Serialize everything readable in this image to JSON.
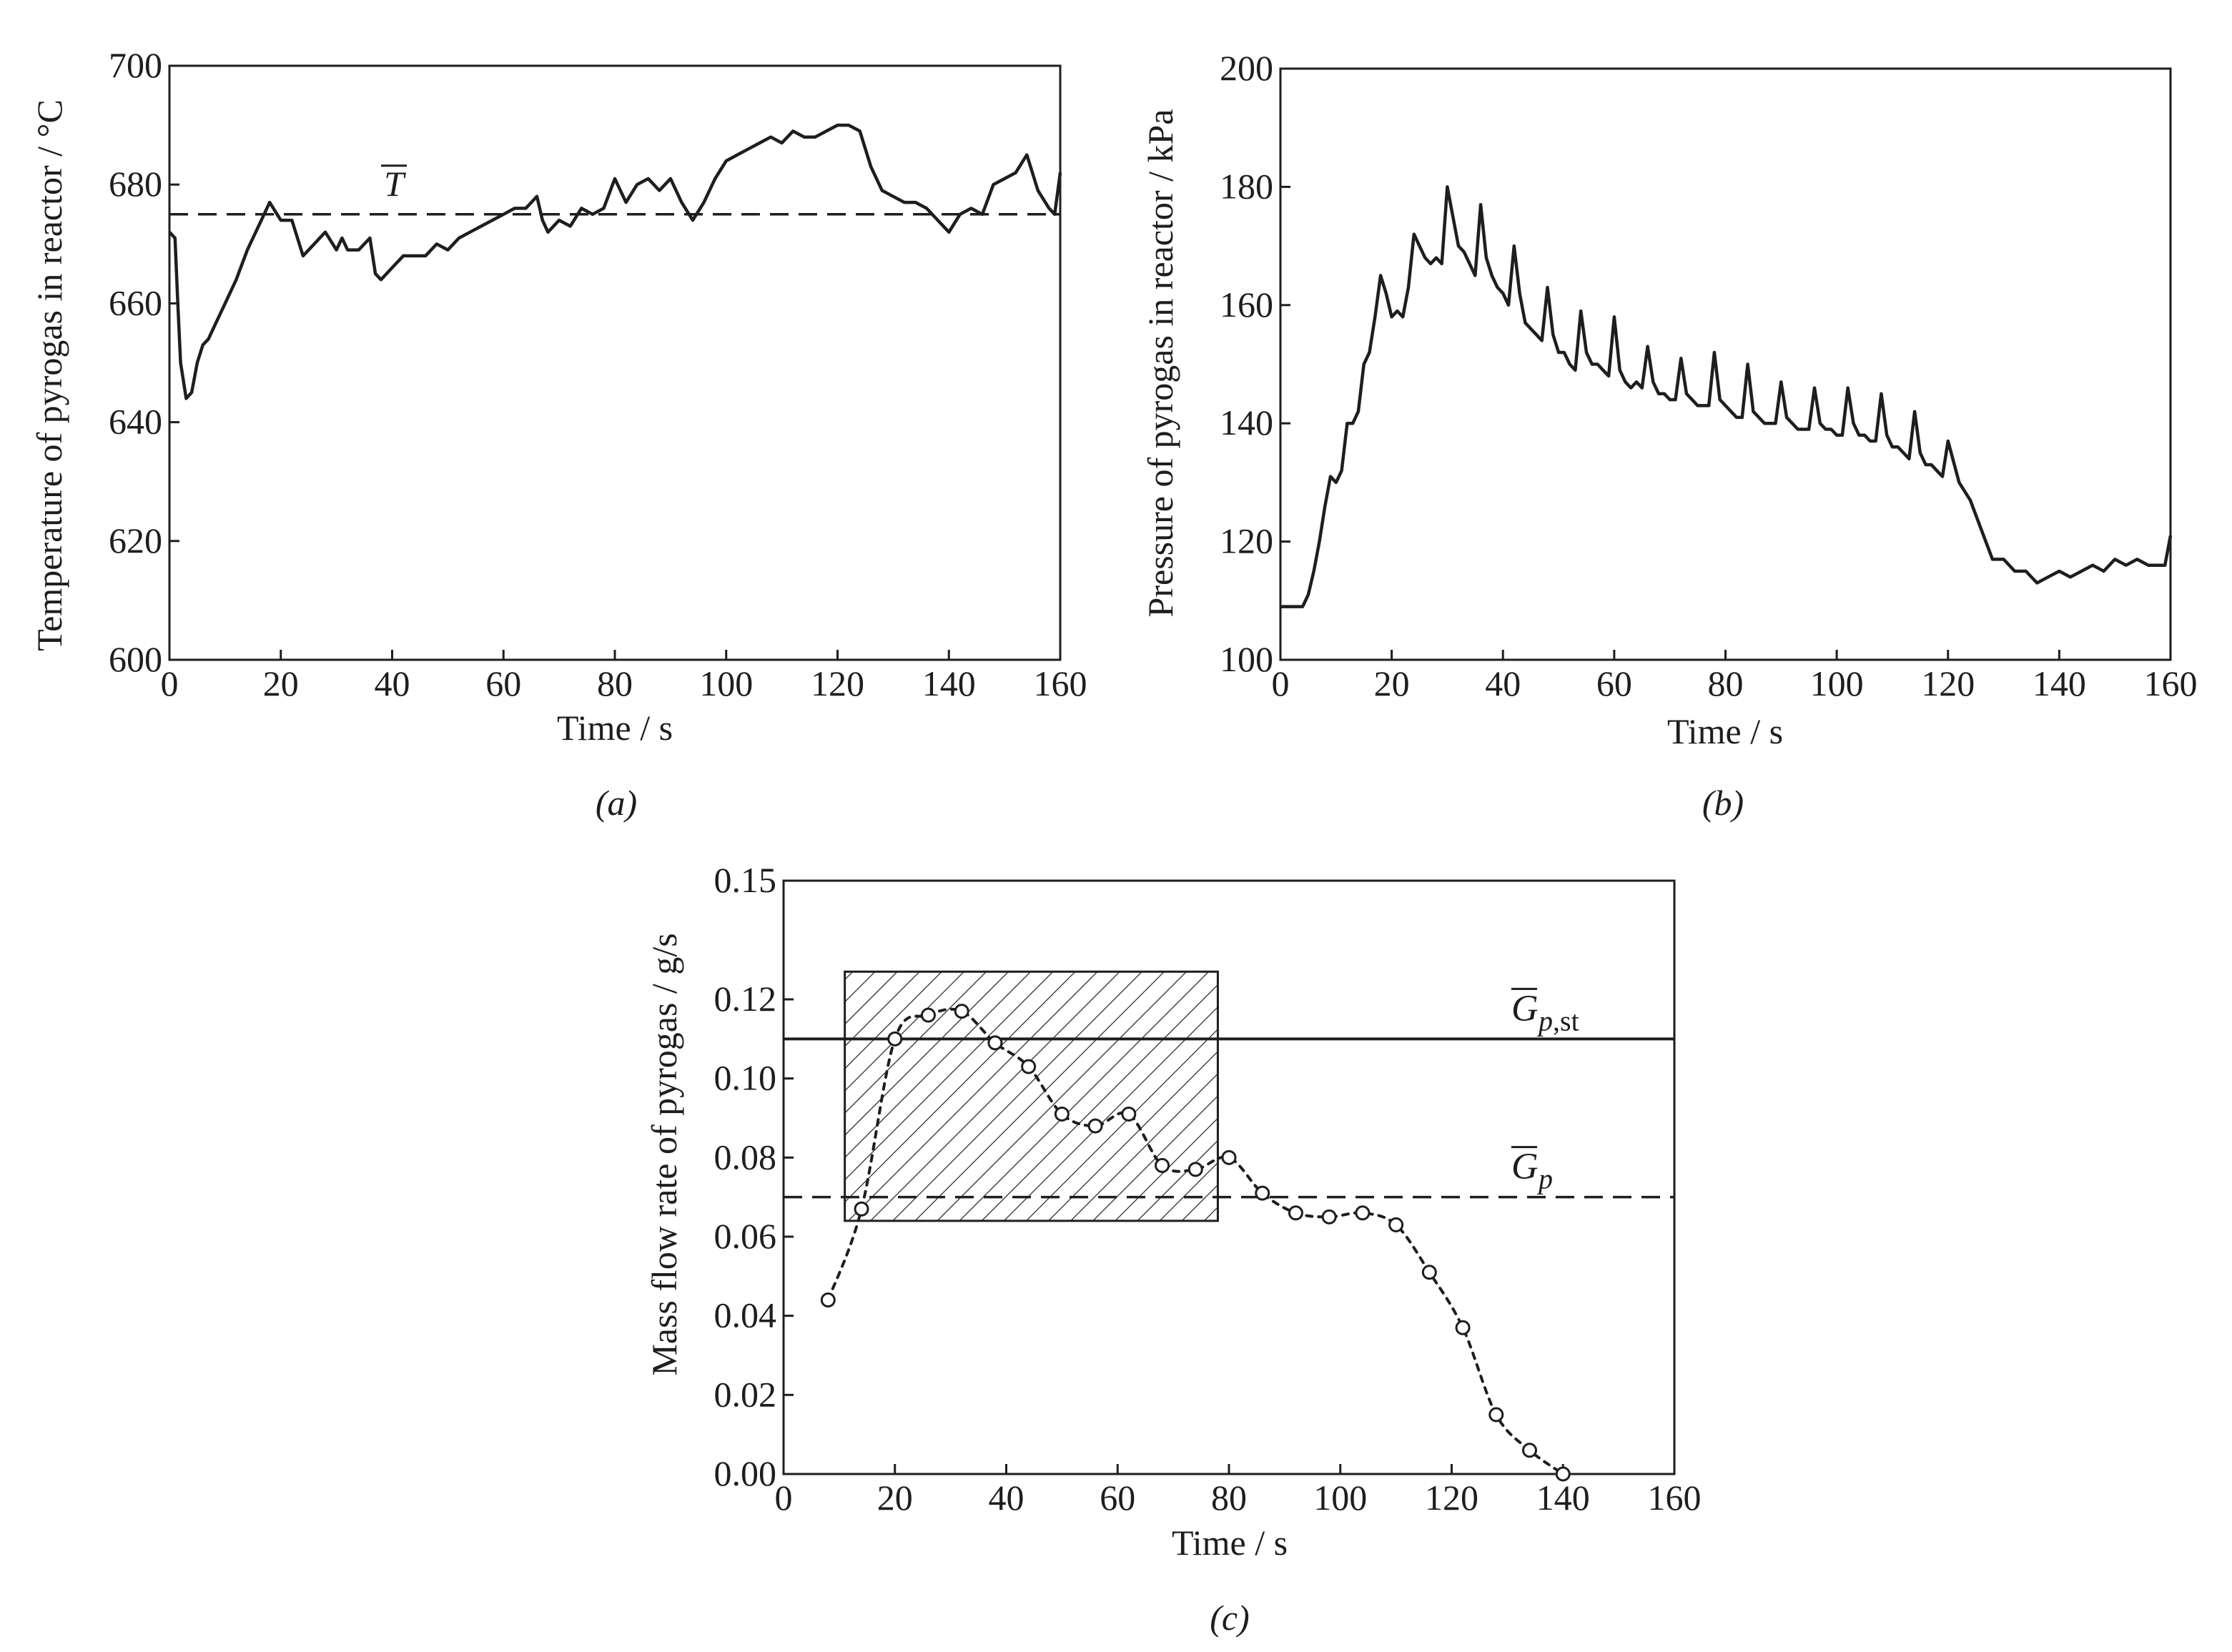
{
  "figure": {
    "panel_labels": [
      "(a)",
      "(b)",
      "(c)"
    ]
  },
  "colors": {
    "ink": "#1e1e1e",
    "background": "#ffffff"
  },
  "chart_data": [
    {
      "id": "a",
      "type": "line",
      "title": "",
      "xlabel": "Time / s",
      "ylabel": "Temperature of pyrogas in reactor / °C",
      "xlim": [
        0,
        160
      ],
      "ylim": [
        600,
        700
      ],
      "xticks": [
        0,
        20,
        40,
        60,
        80,
        100,
        120,
        140,
        160
      ],
      "yticks": [
        600,
        620,
        640,
        660,
        680,
        700
      ],
      "grid": false,
      "series": [
        {
          "style": "solid",
          "x": [
            0,
            1,
            1.5,
            2,
            3,
            4,
            5,
            6,
            7,
            8,
            10,
            12,
            14,
            16,
            17,
            18,
            20,
            22,
            24,
            26,
            28,
            30,
            31,
            32,
            34,
            36,
            37,
            38,
            40,
            42,
            44,
            46,
            48,
            50,
            52,
            54,
            56,
            58,
            60,
            62,
            64,
            66,
            67,
            68,
            70,
            72,
            74,
            76,
            78,
            80,
            82,
            84,
            86,
            88,
            90,
            92,
            94,
            96,
            98,
            100,
            102,
            104,
            106,
            108,
            110,
            112,
            114,
            116,
            118,
            120,
            122,
            124,
            126,
            128,
            130,
            132,
            134,
            136,
            138,
            140,
            142,
            144,
            146,
            148,
            150,
            152,
            154,
            156,
            158,
            159,
            160
          ],
          "y": [
            672,
            671,
            660,
            650,
            644,
            645,
            650,
            653,
            654,
            656,
            660,
            664,
            669,
            673,
            675,
            677,
            674,
            674,
            668,
            670,
            672,
            669,
            671,
            669,
            669,
            671,
            665,
            664,
            666,
            668,
            668,
            668,
            670,
            669,
            671,
            672,
            673,
            674,
            675,
            676,
            676,
            678,
            674,
            672,
            674,
            673,
            676,
            675,
            676,
            681,
            677,
            680,
            681,
            679,
            681,
            677,
            674,
            677,
            681,
            684,
            685,
            686,
            687,
            688,
            687,
            689,
            688,
            688,
            689,
            690,
            690,
            689,
            683,
            679,
            678,
            677,
            677,
            676,
            674,
            672,
            675,
            676,
            675,
            680,
            681,
            682,
            685,
            679,
            676,
            675,
            682
          ]
        }
      ],
      "reference_lines": [
        {
          "y": 675,
          "style": "dashed",
          "label": "T̄"
        }
      ]
    },
    {
      "id": "b",
      "type": "line",
      "title": "",
      "xlabel": "Time / s",
      "ylabel": "Pressure of pyrogas in reactor / kPa",
      "xlim": [
        0,
        160
      ],
      "ylim": [
        100,
        200
      ],
      "xticks": [
        0,
        20,
        40,
        60,
        80,
        100,
        120,
        140,
        160
      ],
      "yticks": [
        100,
        120,
        140,
        160,
        180,
        200
      ],
      "grid": false,
      "series": [
        {
          "style": "solid",
          "x": [
            0,
            2,
            4,
            5,
            6,
            7,
            8,
            9,
            10,
            11,
            12,
            13,
            14,
            15,
            16,
            17,
            18,
            19,
            20,
            21,
            22,
            23,
            24,
            25,
            26,
            27,
            28,
            29,
            30,
            31,
            32,
            33,
            34,
            35,
            36,
            37,
            38,
            39,
            40,
            41,
            42,
            43,
            44,
            45,
            46,
            47,
            48,
            49,
            50,
            51,
            52,
            53,
            54,
            55,
            56,
            57,
            58,
            59,
            60,
            61,
            62,
            63,
            64,
            65,
            66,
            67,
            68,
            69,
            70,
            71,
            72,
            73,
            74,
            75,
            76,
            77,
            78,
            79,
            80,
            81,
            82,
            83,
            84,
            85,
            86,
            87,
            88,
            89,
            90,
            91,
            92,
            93,
            94,
            95,
            96,
            97,
            98,
            99,
            100,
            101,
            102,
            103,
            104,
            105,
            106,
            107,
            108,
            109,
            110,
            111,
            112,
            113,
            114,
            115,
            116,
            117,
            118,
            119,
            120,
            122,
            124,
            126,
            128,
            130,
            132,
            134,
            136,
            138,
            140,
            142,
            144,
            146,
            148,
            150,
            152,
            154,
            156,
            158,
            159,
            160
          ],
          "y": [
            109,
            109,
            109,
            111,
            115,
            120,
            126,
            131,
            130,
            132,
            140,
            140,
            142,
            150,
            152,
            158,
            165,
            162,
            158,
            159,
            158,
            163,
            172,
            170,
            168,
            167,
            168,
            167,
            180,
            175,
            170,
            169,
            167,
            165,
            177,
            168,
            165,
            163,
            162,
            160,
            170,
            162,
            157,
            156,
            155,
            154,
            163,
            155,
            152,
            152,
            150,
            149,
            159,
            152,
            150,
            150,
            149,
            148,
            158,
            149,
            147,
            146,
            147,
            146,
            153,
            147,
            145,
            145,
            144,
            144,
            151,
            145,
            144,
            143,
            143,
            143,
            152,
            144,
            143,
            142,
            141,
            141,
            150,
            142,
            141,
            140,
            140,
            140,
            147,
            141,
            140,
            139,
            139,
            139,
            146,
            140,
            139,
            139,
            138,
            138,
            146,
            140,
            138,
            138,
            137,
            137,
            145,
            138,
            136,
            136,
            135,
            134,
            142,
            135,
            133,
            133,
            132,
            131,
            137,
            130,
            127,
            122,
            117,
            117,
            115,
            115,
            113,
            114,
            115,
            114,
            115,
            116,
            115,
            117,
            116,
            117,
            116,
            116,
            116,
            121
          ]
        }
      ],
      "reference_lines": []
    },
    {
      "id": "c",
      "type": "scatter",
      "title": "",
      "xlabel": "Time / s",
      "ylabel": "Mass flow rate of pyrogas / g/s",
      "xlim": [
        0,
        160
      ],
      "ylim": [
        0.0,
        0.15
      ],
      "xticks": [
        0,
        20,
        40,
        60,
        80,
        100,
        120,
        140,
        160
      ],
      "yticks": [
        "0.00",
        "0.02",
        "0.04",
        "0.06",
        "0.08",
        "0.10",
        "0.12",
        "0.15"
      ],
      "grid": false,
      "series": [
        {
          "style": "dotted-with-open-circles",
          "x": [
            8,
            14,
            20,
            26,
            32,
            38,
            44,
            50,
            56,
            62,
            68,
            74,
            80,
            86,
            92,
            98,
            104,
            110,
            116,
            122,
            128,
            134,
            140
          ],
          "y": [
            0.044,
            0.067,
            0.11,
            0.116,
            0.117,
            0.109,
            0.103,
            0.091,
            0.088,
            0.091,
            0.078,
            0.077,
            0.08,
            0.071,
            0.066,
            0.065,
            0.066,
            0.063,
            0.051,
            0.037,
            0.015,
            0.006,
            0.0
          ]
        }
      ],
      "reference_lines": [
        {
          "y": 0.11,
          "style": "solid",
          "label_main": "G",
          "label_sub": "p,st"
        },
        {
          "y": 0.07,
          "style": "dashed",
          "label_main": "G",
          "label_sub": "p"
        }
      ],
      "shaded_region": {
        "x": [
          11,
          78
        ],
        "y": [
          0.064,
          0.127
        ],
        "pattern": "diagonal-hatch"
      }
    }
  ]
}
